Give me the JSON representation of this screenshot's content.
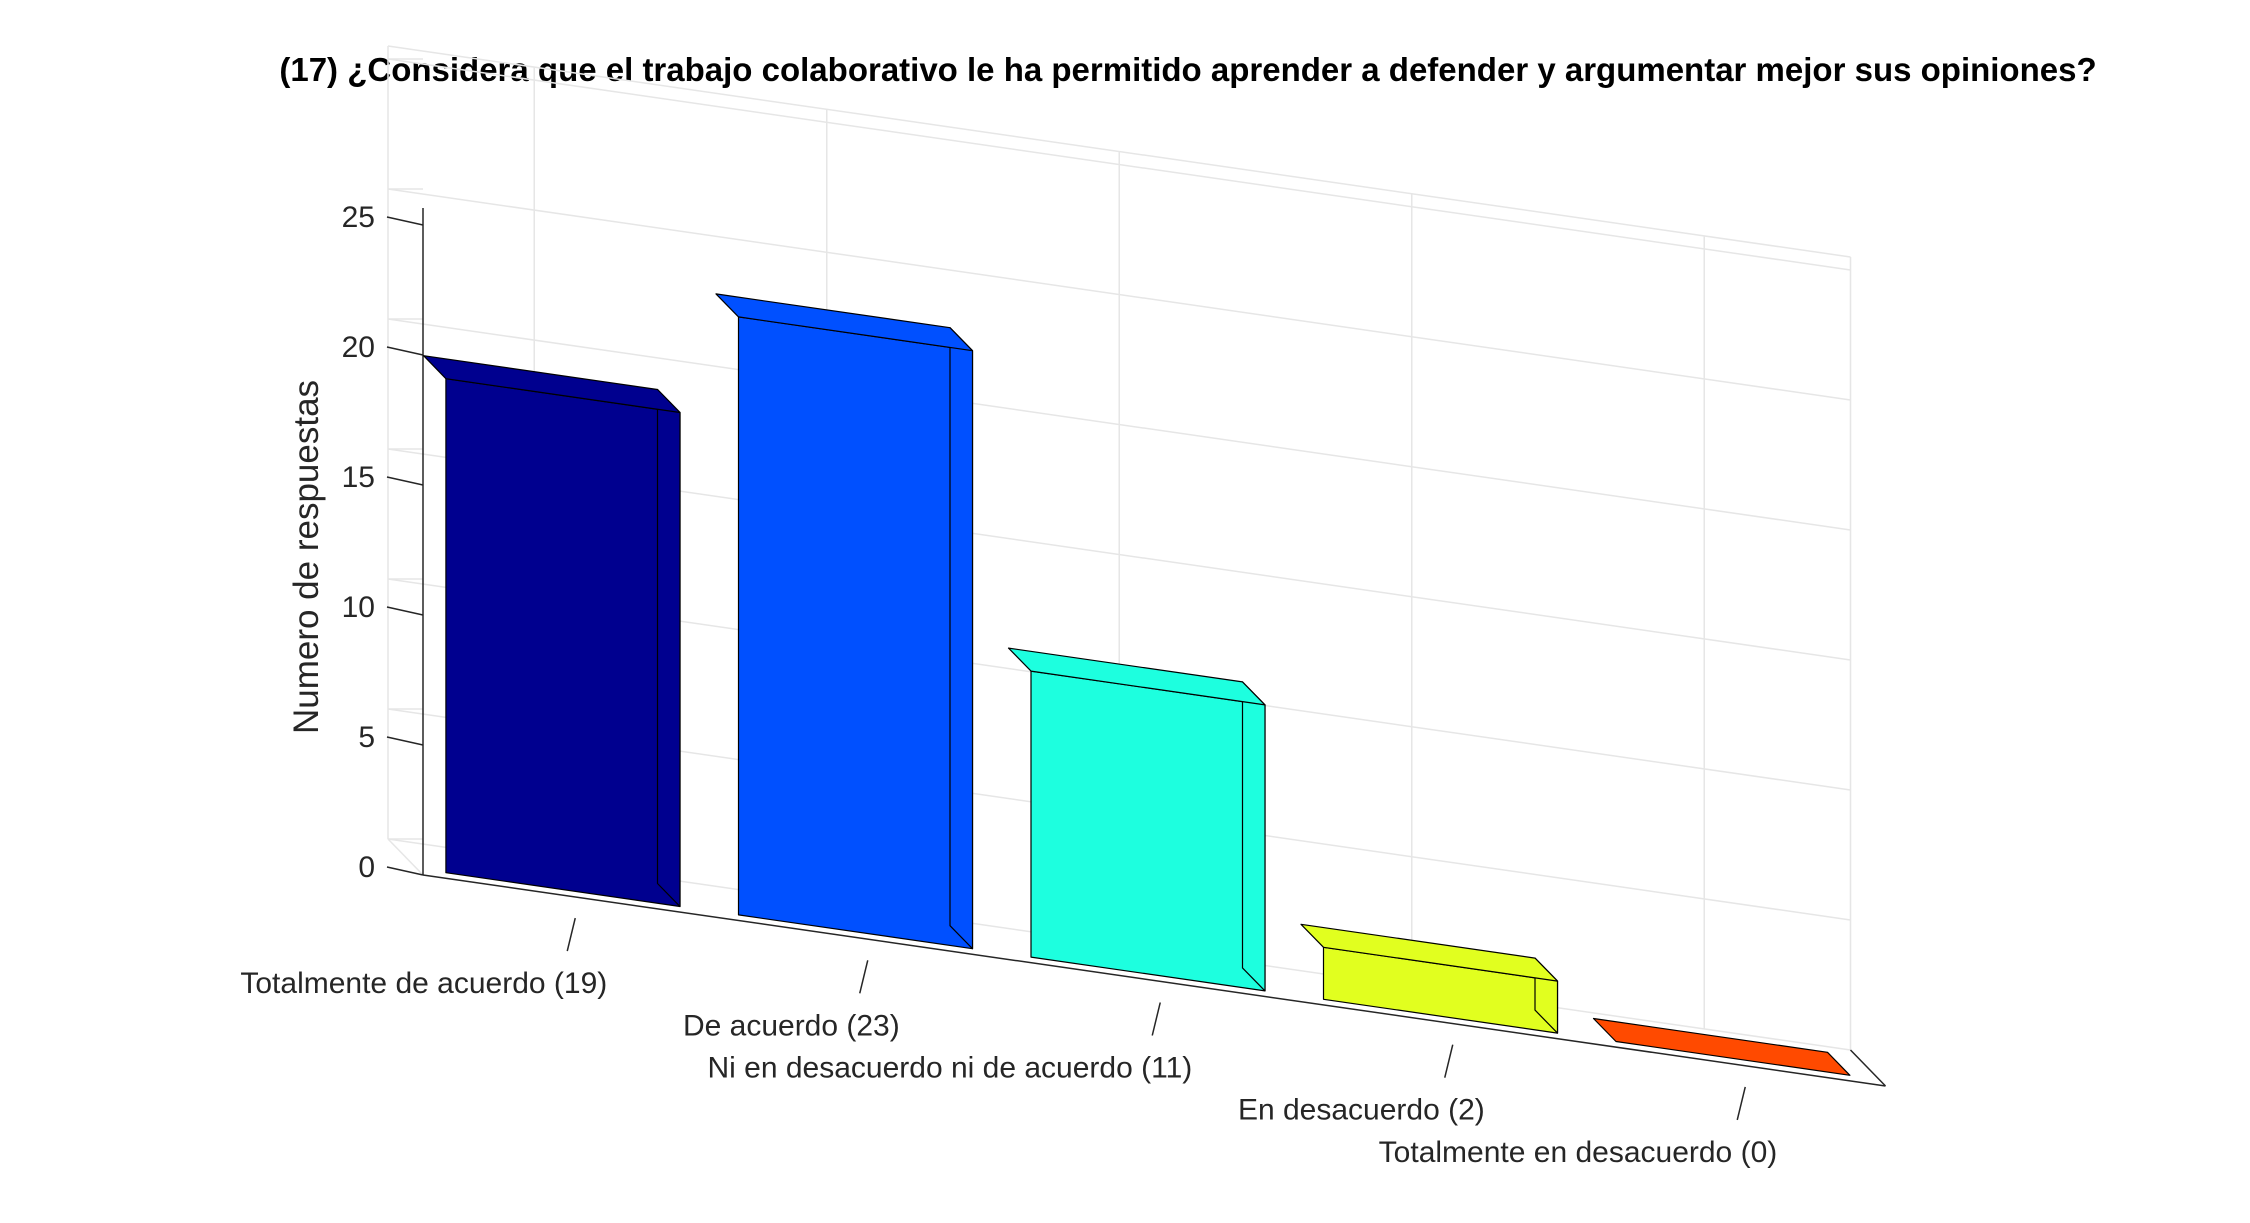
{
  "chart_data": {
    "type": "bar",
    "title": "(17) ¿Considera que el trabajo colaborativo le ha permitido aprender a defender y argumentar mejor sus opiniones?",
    "ylabel": "Numero de respuestas",
    "xlabel": "",
    "categories": [
      "Totalmente de acuerdo (19)",
      "De acuerdo (23)",
      "Ni en desacuerdo ni de acuerdo (11)",
      "En desacuerdo (2)",
      "Totalmente en desacuerdo (0)"
    ],
    "values": [
      19,
      23,
      11,
      2,
      0
    ],
    "colors": [
      "#00008f",
      "#0050ff",
      "#1dffdf",
      "#e1ff1f",
      "#ff4a00"
    ],
    "ylim": [
      0,
      25
    ],
    "yticks": [
      "0",
      "5",
      "10",
      "15",
      "20",
      "25"
    ],
    "grid": true,
    "view": "3d-bar"
  }
}
